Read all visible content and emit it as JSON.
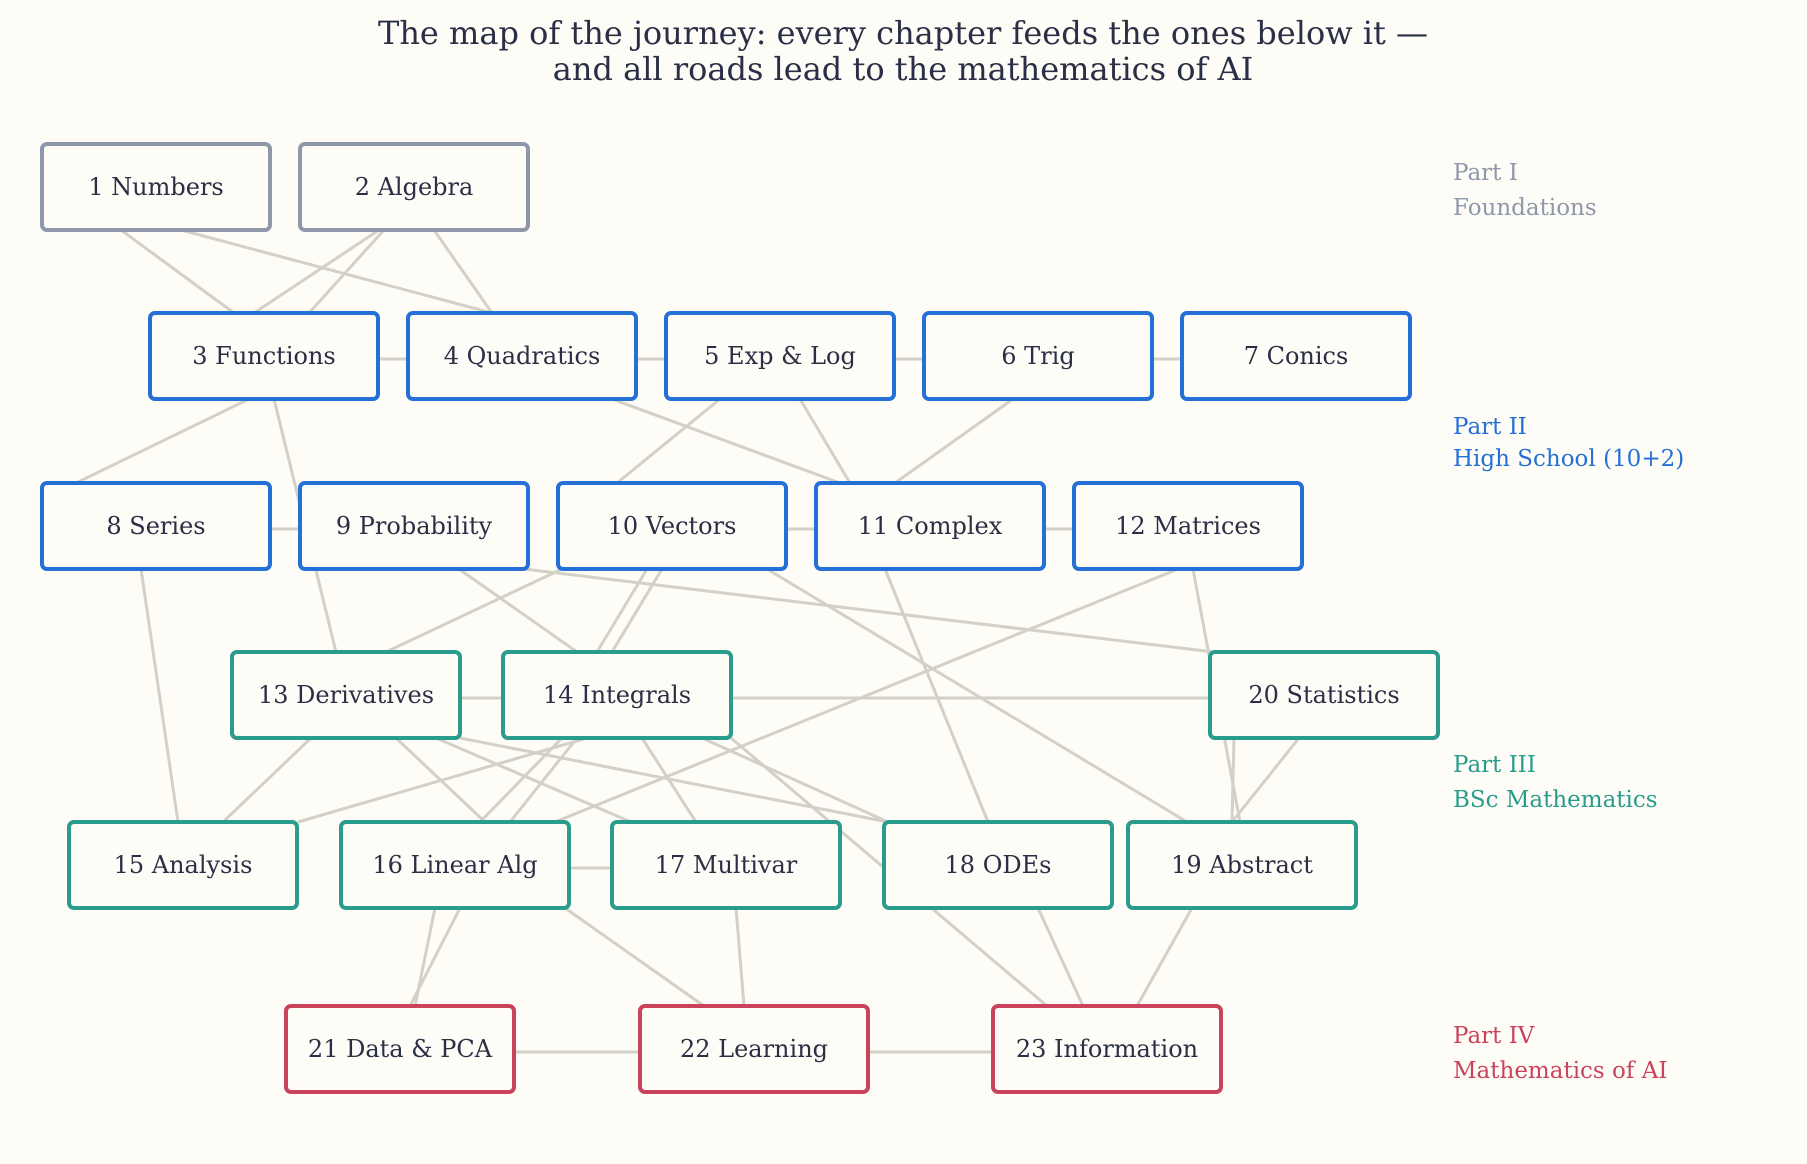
{
  "title": {
    "line1": "The map of the journey: every chapter feeds the ones below it —",
    "line2": "and all roads lead to the mathematics of AI"
  },
  "colors": {
    "foundations": "#8e98aa",
    "high_school": "#2570d6",
    "bsc": "#2a9c8c",
    "ai": "#c9445a",
    "edge": "#d3d1c6",
    "text": "#2b2f45",
    "background": "#fdfcf7"
  },
  "parts": [
    {
      "id": "foundations",
      "title": "Part I",
      "subtitle": "Foundations"
    },
    {
      "id": "high_school",
      "title": "Part II",
      "subtitle": "High School (10+2)"
    },
    {
      "id": "bsc",
      "title": "Part III",
      "subtitle": "BSc Mathematics"
    },
    {
      "id": "ai",
      "title": "Part IV",
      "subtitle": "Mathematics of AI"
    }
  ],
  "nodes": [
    {
      "id": 1,
      "label": "1 Numbers",
      "part": "foundations"
    },
    {
      "id": 2,
      "label": "2 Algebra",
      "part": "foundations"
    },
    {
      "id": 3,
      "label": "3 Functions",
      "part": "high_school"
    },
    {
      "id": 4,
      "label": "4 Quadratics",
      "part": "high_school"
    },
    {
      "id": 5,
      "label": "5 Exp & Log",
      "part": "high_school"
    },
    {
      "id": 6,
      "label": "6 Trig",
      "part": "high_school"
    },
    {
      "id": 7,
      "label": "7 Conics",
      "part": "high_school"
    },
    {
      "id": 8,
      "label": "8 Series",
      "part": "high_school"
    },
    {
      "id": 9,
      "label": "9 Probability",
      "part": "high_school"
    },
    {
      "id": 10,
      "label": "10 Vectors",
      "part": "high_school"
    },
    {
      "id": 11,
      "label": "11 Complex",
      "part": "high_school"
    },
    {
      "id": 12,
      "label": "12 Matrices",
      "part": "high_school"
    },
    {
      "id": 13,
      "label": "13 Derivatives",
      "part": "bsc"
    },
    {
      "id": 14,
      "label": "14 Integrals",
      "part": "bsc"
    },
    {
      "id": 15,
      "label": "15 Analysis",
      "part": "bsc"
    },
    {
      "id": 16,
      "label": "16 Linear Alg",
      "part": "bsc"
    },
    {
      "id": 17,
      "label": "17 Multivar",
      "part": "bsc"
    },
    {
      "id": 18,
      "label": "18 ODEs",
      "part": "bsc"
    },
    {
      "id": 19,
      "label": "19 Abstract",
      "part": "bsc"
    },
    {
      "id": 20,
      "label": "20 Statistics",
      "part": "bsc"
    },
    {
      "id": 21,
      "label": "21 Data & PCA",
      "part": "ai"
    },
    {
      "id": 22,
      "label": "22 Learning",
      "part": "ai"
    },
    {
      "id": 23,
      "label": "23 Information",
      "part": "ai"
    }
  ],
  "edges": [
    [
      1,
      3
    ],
    [
      1,
      4
    ],
    [
      2,
      3
    ],
    [
      2,
      3
    ],
    [
      2,
      4
    ],
    [
      3,
      4
    ],
    [
      4,
      5
    ],
    [
      5,
      6
    ],
    [
      6,
      7
    ],
    [
      3,
      8
    ],
    [
      3,
      13
    ],
    [
      4,
      11
    ],
    [
      5,
      10
    ],
    [
      5,
      11
    ],
    [
      6,
      11
    ],
    [
      8,
      9
    ],
    [
      10,
      11
    ],
    [
      11,
      12
    ],
    [
      8,
      15
    ],
    [
      9,
      14
    ],
    [
      9,
      20
    ],
    [
      10,
      13
    ],
    [
      10,
      14
    ],
    [
      10,
      14
    ],
    [
      10,
      19
    ],
    [
      11,
      18
    ],
    [
      12,
      16
    ],
    [
      12,
      19
    ],
    [
      13,
      14
    ],
    [
      14,
      20
    ],
    [
      13,
      15
    ],
    [
      13,
      16
    ],
    [
      13,
      17
    ],
    [
      13,
      18
    ],
    [
      14,
      15
    ],
    [
      14,
      16
    ],
    [
      14,
      16
    ],
    [
      14,
      17
    ],
    [
      14,
      18
    ],
    [
      14,
      23
    ],
    [
      20,
      19
    ],
    [
      20,
      19
    ],
    [
      16,
      17
    ],
    [
      16,
      21
    ],
    [
      16,
      21
    ],
    [
      16,
      22
    ],
    [
      17,
      22
    ],
    [
      18,
      23
    ],
    [
      19,
      23
    ],
    [
      21,
      22
    ],
    [
      22,
      23
    ]
  ]
}
